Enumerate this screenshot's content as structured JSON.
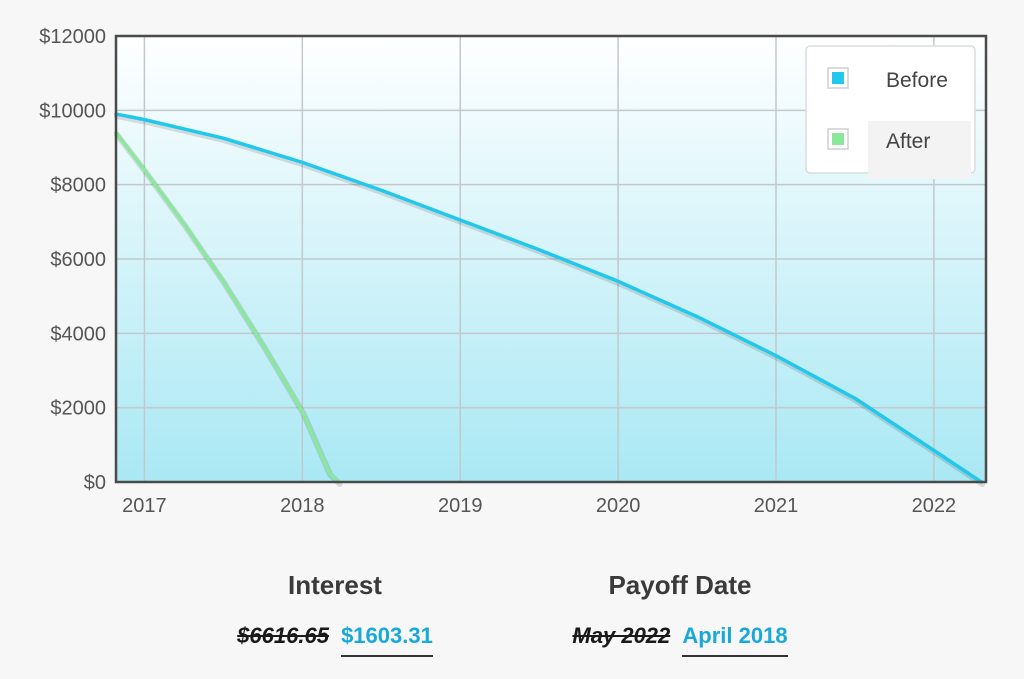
{
  "chart_data": {
    "type": "line",
    "title": "",
    "xlabel": "",
    "ylabel": "",
    "x_ticks": [
      "2017",
      "2018",
      "2019",
      "2020",
      "2021",
      "2022"
    ],
    "y_ticks": [
      "$0",
      "$2000",
      "$4000",
      "$6000",
      "$8000",
      "$10000",
      "$12000"
    ],
    "xlim": [
      2016.82,
      2022.33
    ],
    "ylim": [
      0,
      12000
    ],
    "grid": true,
    "legend_position": "top-right",
    "series": [
      {
        "name": "Before",
        "color": "#22c8ec",
        "points": [
          [
            2016.82,
            9900
          ],
          [
            2017.0,
            9750
          ],
          [
            2017.5,
            9250
          ],
          [
            2018.0,
            8600
          ],
          [
            2018.5,
            7850
          ],
          [
            2019.0,
            7050
          ],
          [
            2019.5,
            6250
          ],
          [
            2020.0,
            5400
          ],
          [
            2020.5,
            4450
          ],
          [
            2021.0,
            3400
          ],
          [
            2021.5,
            2250
          ],
          [
            2022.0,
            850
          ],
          [
            2022.3,
            0
          ]
        ]
      },
      {
        "name": "After",
        "color": "#8ae89a",
        "points": [
          [
            2016.82,
            9400
          ],
          [
            2017.0,
            8400
          ],
          [
            2017.25,
            6950
          ],
          [
            2017.5,
            5400
          ],
          [
            2017.75,
            3700
          ],
          [
            2018.0,
            1900
          ],
          [
            2018.17,
            250
          ],
          [
            2018.23,
            0
          ]
        ]
      }
    ]
  },
  "summary": {
    "interest": {
      "title": "Interest",
      "old": "$6616.65",
      "new": "$1603.31"
    },
    "payoff": {
      "title": "Payoff Date",
      "old": "May 2022",
      "new": "April 2018"
    }
  }
}
